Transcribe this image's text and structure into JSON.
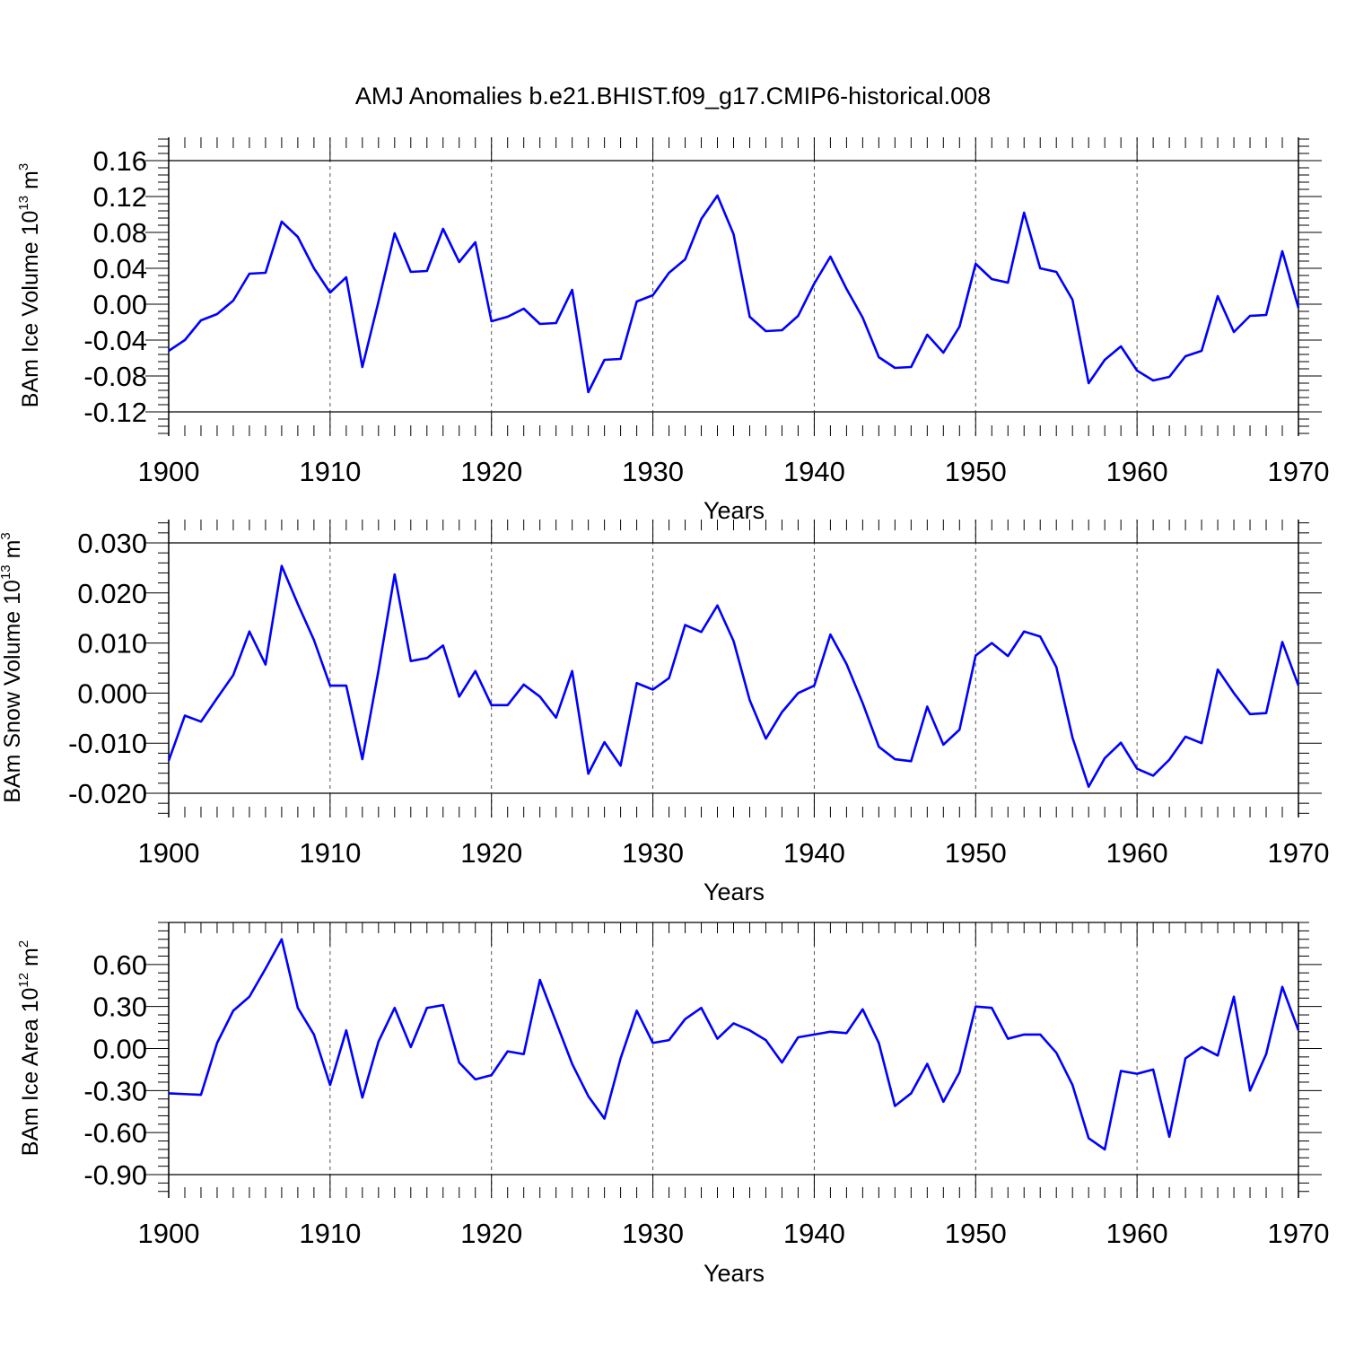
{
  "title": "AMJ Anomalies b.e21.BHIST.f09_g17.CMIP6-historical.008",
  "series_color": "#0000ff",
  "chart_data": [
    {
      "type": "line",
      "ylabel": {
        "main": "BAm Ice Volume 10",
        "exp": "13",
        "unit": " m",
        "unit_exp": "3"
      },
      "xlabel": "Years",
      "xlim": [
        1900,
        1970
      ],
      "ylim": [
        -0.12,
        0.16
      ],
      "yticks": [
        -0.12,
        -0.08,
        -0.04,
        0.0,
        0.04,
        0.08,
        0.12,
        0.16
      ],
      "ytick_labels": [
        "-0.12",
        "-0.08",
        "-0.04",
        "0.00",
        "0.04",
        "0.08",
        "0.12",
        "0.16"
      ],
      "xticks": [
        1900,
        1910,
        1920,
        1930,
        1940,
        1950,
        1960,
        1970
      ],
      "xtick_labels": [
        "1900",
        "1910",
        "1920",
        "1930",
        "1940",
        "1950",
        "1960",
        "1970"
      ],
      "x_start": 1900,
      "values": [
        -0.052,
        -0.04,
        -0.018,
        -0.011,
        0.004,
        0.034,
        0.035,
        0.092,
        0.075,
        0.04,
        0.013,
        0.03,
        -0.07,
        0.003,
        0.079,
        0.036,
        0.037,
        0.084,
        0.047,
        0.069,
        -0.019,
        -0.014,
        -0.005,
        -0.022,
        -0.021,
        0.016,
        -0.098,
        -0.062,
        -0.061,
        0.003,
        0.01,
        0.035,
        0.05,
        0.095,
        0.121,
        0.078,
        -0.014,
        -0.03,
        -0.029,
        -0.013,
        0.023,
        0.053,
        0.017,
        -0.015,
        -0.059,
        -0.071,
        -0.07,
        -0.034,
        -0.054,
        -0.025,
        0.045,
        0.028,
        0.024,
        0.102,
        0.04,
        0.036,
        0.005,
        -0.088,
        -0.062,
        -0.047,
        -0.074,
        -0.085,
        -0.081,
        -0.058,
        -0.052,
        0.009,
        -0.031,
        -0.013,
        -0.012,
        0.059,
        -0.004
      ]
    },
    {
      "type": "line",
      "ylabel": {
        "main": "BAm Snow Volume 10",
        "exp": "13",
        "unit": " m",
        "unit_exp": "3"
      },
      "xlabel": "Years",
      "xlim": [
        1900,
        1970
      ],
      "ylim": [
        -0.02,
        0.03
      ],
      "yticks": [
        -0.02,
        -0.01,
        0.0,
        0.01,
        0.02,
        0.03
      ],
      "ytick_labels": [
        "-0.020",
        "-0.010",
        "0.000",
        "0.010",
        "0.020",
        "0.030"
      ],
      "xticks": [
        1900,
        1910,
        1920,
        1930,
        1940,
        1950,
        1960,
        1970
      ],
      "xtick_labels": [
        "1900",
        "1910",
        "1920",
        "1930",
        "1940",
        "1950",
        "1960",
        "1970"
      ],
      "x_start": 1900,
      "values": [
        -0.0135,
        -0.0045,
        -0.0057,
        -0.001,
        0.0036,
        0.0123,
        0.0057,
        0.0254,
        0.0178,
        0.0106,
        0.0015,
        0.0015,
        -0.0132,
        0.0045,
        0.0237,
        0.0064,
        0.007,
        0.0095,
        -0.0007,
        0.0044,
        -0.0024,
        -0.0024,
        0.0017,
        -0.0007,
        -0.0049,
        0.0044,
        -0.0161,
        -0.0098,
        -0.0145,
        0.002,
        0.0007,
        0.003,
        0.0136,
        0.0122,
        0.0175,
        0.0104,
        -0.0014,
        -0.0091,
        -0.0038,
        0.0,
        0.0015,
        0.0117,
        0.0058,
        -0.002,
        -0.0107,
        -0.0132,
        -0.0136,
        -0.0027,
        -0.0103,
        -0.0073,
        0.0075,
        0.01,
        0.0074,
        0.0123,
        0.0113,
        0.0052,
        -0.0089,
        -0.0187,
        -0.013,
        -0.0099,
        -0.0151,
        -0.0165,
        -0.0133,
        -0.0087,
        -0.01,
        0.0047,
        0.0,
        -0.0042,
        -0.004,
        0.0102,
        0.0015
      ]
    },
    {
      "type": "line",
      "ylabel": {
        "main": "BAm Ice Area 10",
        "exp": "12",
        "unit": " m",
        "unit_exp": "2"
      },
      "xlabel": "Years",
      "xlim": [
        1900,
        1970
      ],
      "ylim": [
        -0.9,
        0.9
      ],
      "yticks": [
        -0.9,
        -0.6,
        -0.3,
        0.0,
        0.3,
        0.6
      ],
      "ytick_labels": [
        "-0.90",
        "-0.60",
        "-0.30",
        "0.00",
        "0.30",
        "0.60"
      ],
      "xticks": [
        1900,
        1910,
        1920,
        1930,
        1940,
        1950,
        1960,
        1970
      ],
      "xtick_labels": [
        "1900",
        "1910",
        "1920",
        "1930",
        "1940",
        "1950",
        "1960",
        "1970"
      ],
      "x_start": 1900,
      "values": [
        -0.32,
        -0.325,
        -0.33,
        0.04,
        0.27,
        0.37,
        0.57,
        0.78,
        0.29,
        0.1,
        -0.26,
        0.13,
        -0.35,
        0.05,
        0.29,
        0.01,
        0.29,
        0.31,
        -0.1,
        -0.22,
        -0.19,
        -0.02,
        -0.04,
        0.49,
        0.19,
        -0.11,
        -0.34,
        -0.5,
        -0.07,
        0.27,
        0.04,
        0.06,
        0.21,
        0.29,
        0.07,
        0.18,
        0.13,
        0.06,
        -0.1,
        0.08,
        0.1,
        0.12,
        0.11,
        0.28,
        0.04,
        -0.41,
        -0.32,
        -0.11,
        -0.38,
        -0.17,
        0.3,
        0.29,
        0.07,
        0.1,
        0.1,
        -0.03,
        -0.26,
        -0.64,
        -0.72,
        -0.16,
        -0.18,
        -0.15,
        -0.63,
        -0.07,
        0.01,
        -0.05,
        0.37,
        -0.3,
        -0.04,
        0.44,
        0.13
      ]
    }
  ]
}
